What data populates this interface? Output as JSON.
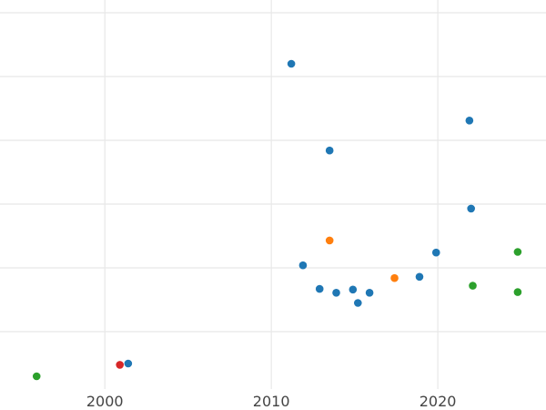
{
  "chart_data": {
    "type": "scatter",
    "title": "",
    "xlabel": "",
    "ylabel": "",
    "xlim": [
      1993.7,
      2026.5
    ],
    "ylim": [
      -0.4,
      5.7
    ],
    "grid": true,
    "x_ticks": [
      {
        "value": 2000,
        "label": "2000"
      },
      {
        "value": 2010,
        "label": "2010"
      },
      {
        "value": 2020,
        "label": "2020"
      }
    ],
    "y_gridlines": [
      0.5,
      1.5,
      2.5,
      3.5,
      4.5,
      5.5
    ],
    "colors": {
      "blue": "#1f77b4",
      "orange": "#ff7f0e",
      "green": "#2ca02c",
      "red": "#d62728",
      "grid": "#e8e8e8"
    },
    "series": [
      {
        "color_key": "blue",
        "points": [
          [
            2001.4,
            0.0
          ],
          [
            2011.2,
            4.7
          ],
          [
            2011.9,
            1.54
          ],
          [
            2012.9,
            1.17
          ],
          [
            2013.5,
            3.34
          ],
          [
            2013.9,
            1.11
          ],
          [
            2014.9,
            1.16
          ],
          [
            2015.2,
            0.95
          ],
          [
            2015.9,
            1.11
          ],
          [
            2018.9,
            1.36
          ],
          [
            2019.9,
            1.74
          ],
          [
            2021.9,
            3.81
          ],
          [
            2022.0,
            2.43
          ]
        ]
      },
      {
        "color_key": "orange",
        "points": [
          [
            2013.5,
            1.93
          ],
          [
            2017.4,
            1.34
          ]
        ]
      },
      {
        "color_key": "green",
        "points": [
          [
            1995.9,
            -0.2
          ],
          [
            2022.1,
            1.22
          ],
          [
            2024.8,
            1.75
          ],
          [
            2024.8,
            1.12
          ]
        ]
      },
      {
        "color_key": "red",
        "points": [
          [
            2000.9,
            -0.02
          ]
        ]
      }
    ]
  }
}
